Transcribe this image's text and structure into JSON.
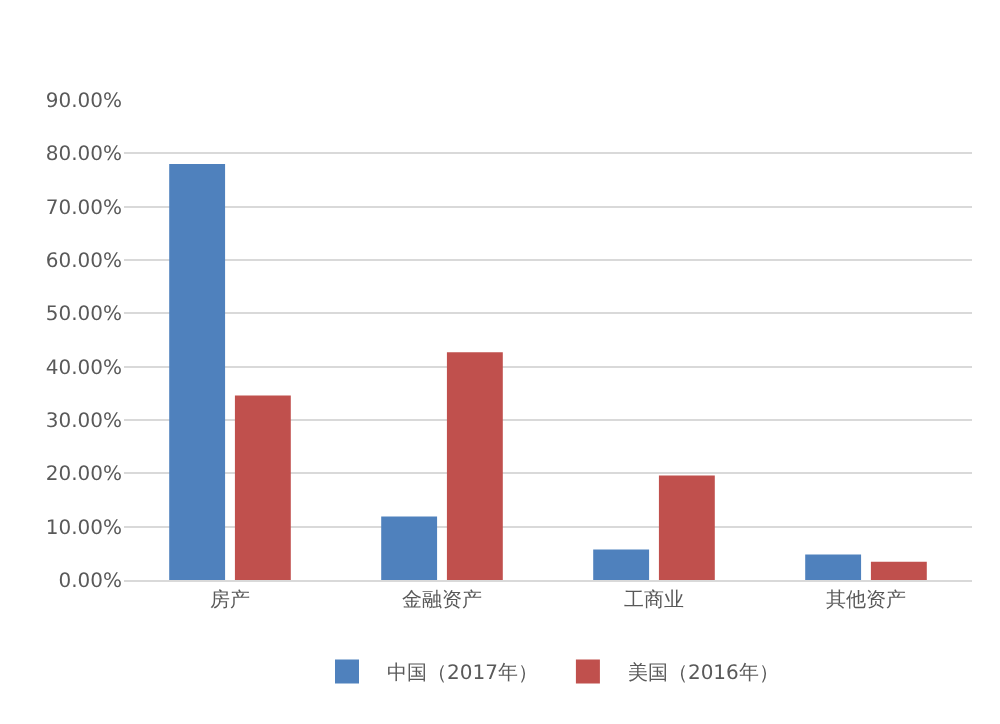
{
  "chart_data": {
    "type": "bar",
    "categories": [
      "房产",
      "金融资产",
      "工商业",
      "其他资产"
    ],
    "series": [
      {
        "name": "中国（2017年）",
        "color": "#4f81bd",
        "values": [
          78,
          11.9,
          5.7,
          4.8
        ]
      },
      {
        "name": "美国（2016年）",
        "color": "#c0504d",
        "values": [
          34.6,
          42.7,
          19.6,
          3.4
        ]
      }
    ],
    "ylim": [
      0,
      90
    ],
    "yticks": [
      {
        "value": 0,
        "label": "0.00%"
      },
      {
        "value": 10,
        "label": "10.00%"
      },
      {
        "value": 20,
        "label": "20.00%"
      },
      {
        "value": 30,
        "label": "30.00%"
      },
      {
        "value": 40,
        "label": "40.00%"
      },
      {
        "value": 50,
        "label": "50.00%"
      },
      {
        "value": 60,
        "label": "60.00%"
      },
      {
        "value": 70,
        "label": "70.00%"
      },
      {
        "value": 80,
        "label": "80.00%"
      },
      {
        "value": 90,
        "label": "90.00%"
      }
    ],
    "grid": "y",
    "legend": "bottom"
  }
}
